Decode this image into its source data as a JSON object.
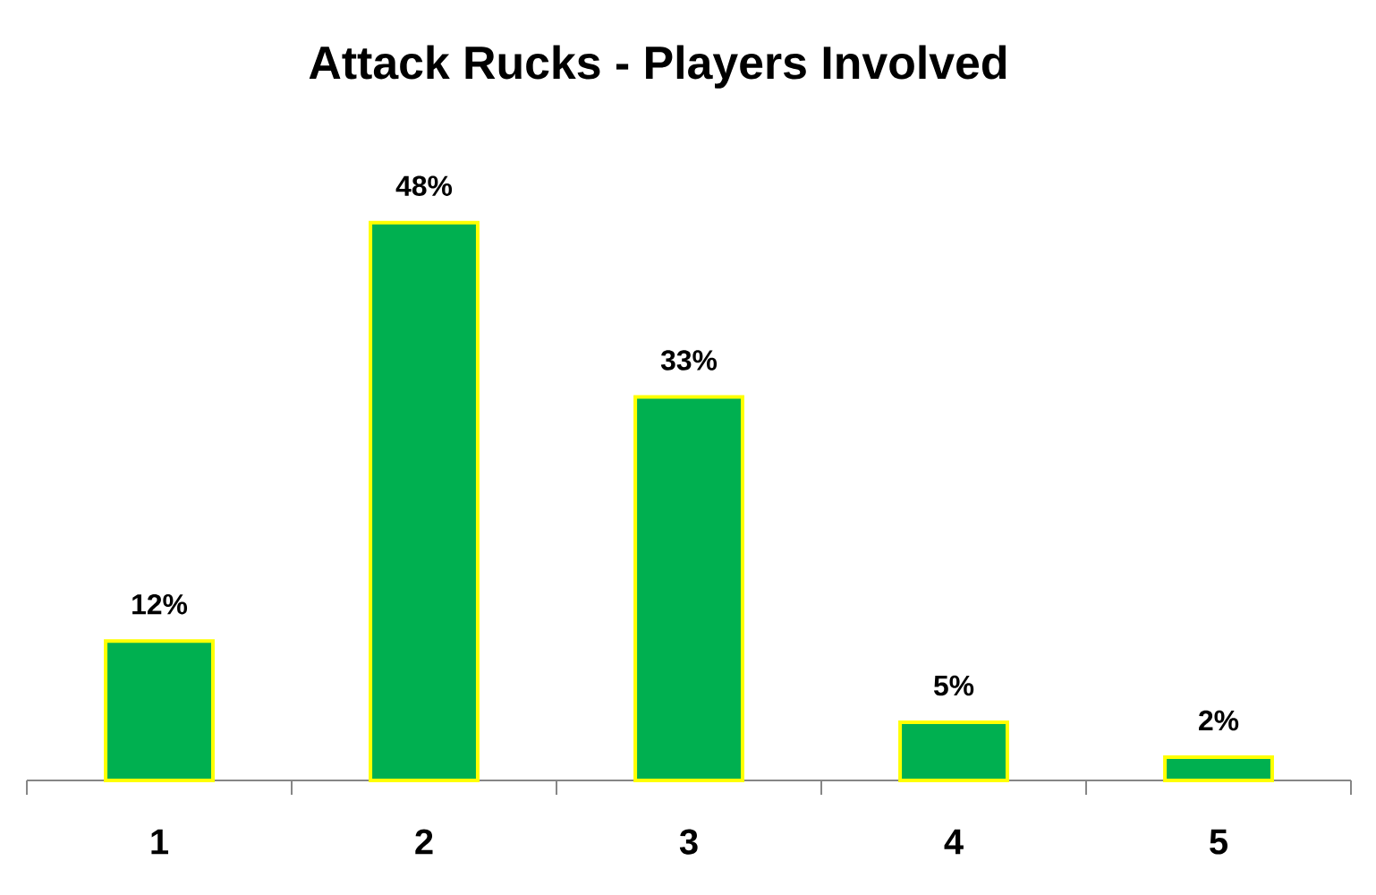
{
  "chart_data": {
    "type": "bar",
    "title": "Attack Rucks - Players Involved",
    "categories": [
      "1",
      "2",
      "3",
      "4",
      "5"
    ],
    "values": [
      12,
      48,
      33,
      5,
      2
    ],
    "value_labels": [
      "12%",
      "48%",
      "33%",
      "5%",
      "2%"
    ],
    "color": "#00b050",
    "tick_labels": "x"
  }
}
